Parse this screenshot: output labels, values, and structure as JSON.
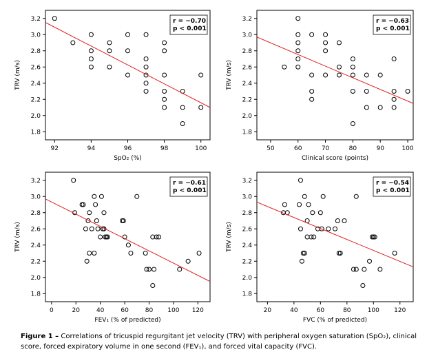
{
  "chart_data": [
    {
      "type": "scatter",
      "x_label": "SpO₂ (%)",
      "y_label": "TRV (m/s)",
      "annotation": [
        "r = −0.70",
        "p < 0.001"
      ],
      "xlim": [
        91.5,
        100.5
      ],
      "ylim": [
        1.7,
        3.3
      ],
      "xticks": [
        92,
        94,
        96,
        98,
        100
      ],
      "yticks": [
        1.8,
        {
          "value": 2,
          "label": "2.0"
        },
        2.2,
        2.4,
        2.6,
        2.8,
        {
          "value": 3,
          "label": "3.0"
        },
        3.2
      ],
      "x": [
        92,
        93,
        94,
        94,
        94,
        94,
        95,
        95,
        95,
        96,
        96,
        96,
        97,
        97,
        97,
        97,
        97,
        97,
        98,
        98,
        98,
        98,
        98,
        98,
        99,
        99,
        99,
        100,
        100
      ],
      "values": [
        3.2,
        2.9,
        3.0,
        2.8,
        2.7,
        2.6,
        2.9,
        2.8,
        2.6,
        3.0,
        2.8,
        2.5,
        3.0,
        2.7,
        2.6,
        2.5,
        2.4,
        2.3,
        2.9,
        2.8,
        2.5,
        2.3,
        2.2,
        2.1,
        2.3,
        2.1,
        1.9,
        2.5,
        2.1
      ],
      "trendline": {
        "x": [
          91.5,
          100.5
        ],
        "y": [
          3.15,
          2.1
        ],
        "color": "#e02020"
      }
    },
    {
      "type": "scatter",
      "x_label": "Clinical score (points)",
      "y_label": "TRV (m/s)",
      "annotation": [
        "r = −0.63",
        "p < 0.001"
      ],
      "xlim": [
        45,
        102
      ],
      "ylim": [
        1.7,
        3.3
      ],
      "xticks": [
        50,
        60,
        70,
        80,
        90,
        100
      ],
      "yticks": [
        1.8,
        {
          "value": 2,
          "label": "2.0"
        },
        2.2,
        2.4,
        2.6,
        2.8,
        {
          "value": 3,
          "label": "3.0"
        },
        3.2
      ],
      "x": [
        55,
        60,
        60,
        60,
        60,
        60,
        60,
        65,
        65,
        65,
        65,
        70,
        70,
        70,
        70,
        75,
        75,
        75,
        80,
        80,
        80,
        80,
        80,
        85,
        85,
        85,
        90,
        90,
        95,
        95,
        95,
        95,
        100
      ],
      "values": [
        2.6,
        3.2,
        3.0,
        2.9,
        2.8,
        2.7,
        2.6,
        3.0,
        2.5,
        2.3,
        2.2,
        3.0,
        2.9,
        2.8,
        2.5,
        2.9,
        2.6,
        2.5,
        2.7,
        2.6,
        2.5,
        2.3,
        1.9,
        2.5,
        2.3,
        2.1,
        2.5,
        2.1,
        2.7,
        2.3,
        2.2,
        2.1,
        2.3
      ],
      "trendline": {
        "x": [
          45,
          102
        ],
        "y": [
          2.97,
          2.15
        ],
        "color": "#e02020"
      }
    },
    {
      "type": "scatter",
      "x_label": "FEV₁ (% of predicted)",
      "y_label": "TRV (m/s)",
      "annotation": [
        "r = −0.61",
        "p < 0.001"
      ],
      "xlim": [
        -5,
        130
      ],
      "ylim": [
        1.7,
        3.3
      ],
      "xticks": [
        0,
        20,
        40,
        60,
        80,
        100,
        120
      ],
      "yticks": [
        1.8,
        {
          "value": 2,
          "label": "2.0"
        },
        2.2,
        2.4,
        2.6,
        2.8,
        {
          "value": 3,
          "label": "3.0"
        },
        3.2
      ],
      "x": [
        18,
        19,
        25,
        26,
        28,
        29,
        30,
        31,
        31,
        33,
        35,
        35,
        36,
        37,
        38,
        40,
        41,
        42,
        43,
        43,
        44,
        45,
        46,
        58,
        59,
        60,
        63,
        65,
        70,
        77,
        78,
        80,
        83,
        83,
        84,
        86,
        88,
        105,
        112,
        121
      ],
      "values": [
        3.2,
        2.8,
        2.9,
        2.9,
        2.6,
        2.2,
        2.7,
        2.8,
        2.3,
        2.6,
        2.3,
        3.0,
        2.9,
        2.7,
        2.6,
        2.5,
        3.0,
        2.6,
        2.6,
        2.8,
        2.5,
        2.5,
        2.5,
        2.7,
        2.7,
        2.5,
        2.4,
        2.3,
        3.0,
        2.3,
        2.1,
        2.1,
        1.9,
        2.5,
        2.1,
        2.5,
        2.5,
        2.1,
        2.2,
        2.3
      ],
      "trendline": {
        "x": [
          -5,
          130
        ],
        "y": [
          2.97,
          1.95
        ],
        "color": "#e02020"
      }
    },
    {
      "type": "scatter",
      "x_label": "FVC (% of predicted)",
      "y_label": "TRV (m/s)",
      "annotation": [
        "r = −0.54",
        "p < 0.001"
      ],
      "xlim": [
        12,
        130
      ],
      "ylim": [
        1.7,
        3.3
      ],
      "xticks": [
        20,
        40,
        60,
        80,
        100,
        120
      ],
      "yticks": [
        1.8,
        {
          "value": 2,
          "label": "2.0"
        },
        2.2,
        2.4,
        2.6,
        2.8,
        {
          "value": 3,
          "label": "3.0"
        },
        3.2
      ],
      "x": [
        32,
        33,
        35,
        44,
        45,
        45,
        46,
        47,
        48,
        48,
        50,
        50,
        51,
        53,
        54,
        55,
        58,
        60,
        61,
        62,
        66,
        71,
        73,
        74,
        75,
        78,
        85,
        87,
        87,
        92,
        93,
        97,
        99,
        100,
        101,
        105,
        116
      ],
      "values": [
        2.8,
        2.9,
        2.8,
        2.9,
        2.6,
        3.2,
        2.2,
        2.3,
        3.0,
        2.3,
        2.5,
        2.7,
        2.9,
        2.5,
        2.8,
        2.5,
        2.6,
        2.8,
        2.6,
        3.0,
        2.6,
        2.6,
        2.7,
        2.3,
        2.3,
        2.7,
        2.1,
        3.0,
        2.1,
        1.9,
        2.1,
        2.2,
        2.5,
        2.5,
        2.5,
        2.1,
        2.3
      ],
      "trendline": {
        "x": [
          12,
          130
        ],
        "y": [
          2.93,
          2.13
        ],
        "color": "#e02020"
      }
    }
  ],
  "caption": {
    "label": "Figure 1 –",
    "text": "Correlations of tricuspid regurgitant jet velocity (TRV) with peripheral oxygen saturation (SpO₂), clinical score, forced expiratory volume in one second (FEV₁), and forced vital capacity (FVC)."
  }
}
